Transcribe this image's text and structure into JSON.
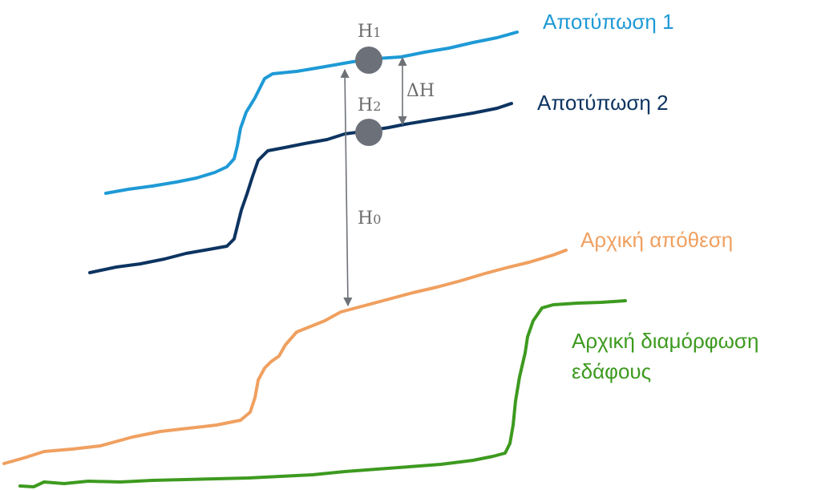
{
  "colors": {
    "print1": "#1e9ad6",
    "print2": "#0d3461",
    "initial_deposit": "#f0a060",
    "ground": "#3d9a1f",
    "annotation": "#6e7277",
    "point": "#6b7079"
  },
  "labels": {
    "print1": "Αποτύπωση 1",
    "print2": "Αποτύπωση 2",
    "initial_deposit": "Αρχική απόθεση",
    "ground_line1": "Αρχική διαμόρφωση",
    "ground_line2": "εδάφους"
  },
  "annotations": {
    "h1_base": "H",
    "h1_sub": "1",
    "h2_base": "H",
    "h2_sub": "2",
    "h0_base": "H",
    "h0_sub": "0",
    "delta_h": "ΔH"
  }
}
